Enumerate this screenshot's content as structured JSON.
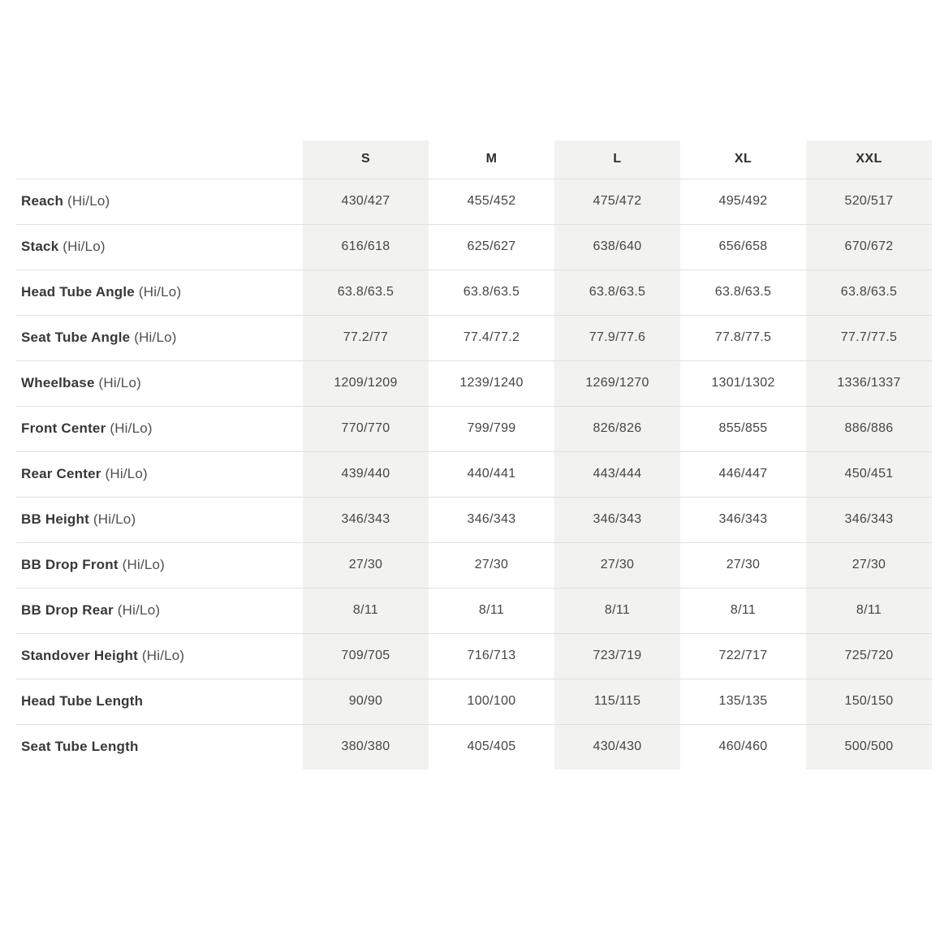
{
  "table": {
    "columns": [
      "S",
      "M",
      "L",
      "XL",
      "XXL"
    ],
    "shaded_column_indexes": [
      0,
      2,
      4
    ],
    "corner_label": "",
    "rows": [
      {
        "label": "Reach",
        "qualifier": "(Hi/Lo)",
        "values": [
          "430/427",
          "455/452",
          "475/472",
          "495/492",
          "520/517"
        ]
      },
      {
        "label": "Stack",
        "qualifier": "(Hi/Lo)",
        "values": [
          "616/618",
          "625/627",
          "638/640",
          "656/658",
          "670/672"
        ]
      },
      {
        "label": "Head Tube Angle",
        "qualifier": "(Hi/Lo)",
        "values": [
          "63.8/63.5",
          "63.8/63.5",
          "63.8/63.5",
          "63.8/63.5",
          "63.8/63.5"
        ]
      },
      {
        "label": "Seat Tube Angle",
        "qualifier": "(Hi/Lo)",
        "values": [
          "77.2/77",
          "77.4/77.2",
          "77.9/77.6",
          "77.8/77.5",
          "77.7/77.5"
        ]
      },
      {
        "label": "Wheelbase",
        "qualifier": "(Hi/Lo)",
        "values": [
          "1209/1209",
          "1239/1240",
          "1269/1270",
          "1301/1302",
          "1336/1337"
        ]
      },
      {
        "label": "Front Center",
        "qualifier": "(Hi/Lo)",
        "values": [
          "770/770",
          "799/799",
          "826/826",
          "855/855",
          "886/886"
        ]
      },
      {
        "label": "Rear Center",
        "qualifier": "(Hi/Lo)",
        "values": [
          "439/440",
          "440/441",
          "443/444",
          "446/447",
          "450/451"
        ]
      },
      {
        "label": "BB Height",
        "qualifier": "(Hi/Lo)",
        "values": [
          "346/343",
          "346/343",
          "346/343",
          "346/343",
          "346/343"
        ]
      },
      {
        "label": "BB Drop Front",
        "qualifier": "(Hi/Lo)",
        "values": [
          "27/30",
          "27/30",
          "27/30",
          "27/30",
          "27/30"
        ]
      },
      {
        "label": "BB Drop Rear",
        "qualifier": "(Hi/Lo)",
        "values": [
          "8/11",
          "8/11",
          "8/11",
          "8/11",
          "8/11"
        ]
      },
      {
        "label": "Standover Height",
        "qualifier": "(Hi/Lo)",
        "values": [
          "709/705",
          "716/713",
          "723/719",
          "722/717",
          "725/720"
        ]
      },
      {
        "label": "Head Tube Length",
        "qualifier": "",
        "values": [
          "90/90",
          "100/100",
          "115/115",
          "135/135",
          "150/150"
        ]
      },
      {
        "label": "Seat Tube Length",
        "qualifier": "",
        "values": [
          "380/380",
          "405/405",
          "430/430",
          "460/460",
          "500/500"
        ]
      }
    ]
  },
  "colors": {
    "shaded_column_bg": "#f2f2f1",
    "row_border": "#e0e0df",
    "header_text": "#2d2d2d",
    "label_text": "#383838",
    "value_text": "#454545",
    "page_bg": "#ffffff"
  },
  "chart_data": {
    "type": "table",
    "title": "",
    "columns": [
      "",
      "S",
      "M",
      "L",
      "XL",
      "XXL"
    ],
    "rows": [
      [
        "Reach (Hi/Lo)",
        "430/427",
        "455/452",
        "475/472",
        "495/492",
        "520/517"
      ],
      [
        "Stack (Hi/Lo)",
        "616/618",
        "625/627",
        "638/640",
        "656/658",
        "670/672"
      ],
      [
        "Head Tube Angle (Hi/Lo)",
        "63.8/63.5",
        "63.8/63.5",
        "63.8/63.5",
        "63.8/63.5",
        "63.8/63.5"
      ],
      [
        "Seat Tube Angle (Hi/Lo)",
        "77.2/77",
        "77.4/77.2",
        "77.9/77.6",
        "77.8/77.5",
        "77.7/77.5"
      ],
      [
        "Wheelbase (Hi/Lo)",
        "1209/1209",
        "1239/1240",
        "1269/1270",
        "1301/1302",
        "1336/1337"
      ],
      [
        "Front Center (Hi/Lo)",
        "770/770",
        "799/799",
        "826/826",
        "855/855",
        "886/886"
      ],
      [
        "Rear Center (Hi/Lo)",
        "439/440",
        "440/441",
        "443/444",
        "446/447",
        "450/451"
      ],
      [
        "BB Height (Hi/Lo)",
        "346/343",
        "346/343",
        "346/343",
        "346/343",
        "346/343"
      ],
      [
        "BB Drop Front (Hi/Lo)",
        "27/30",
        "27/30",
        "27/30",
        "27/30",
        "27/30"
      ],
      [
        "BB Drop Rear (Hi/Lo)",
        "8/11",
        "8/11",
        "8/11",
        "8/11",
        "8/11"
      ],
      [
        "Standover Height (Hi/Lo)",
        "709/705",
        "716/713",
        "723/719",
        "722/717",
        "725/720"
      ],
      [
        "Head Tube Length",
        "90/90",
        "100/100",
        "115/115",
        "135/135",
        "150/150"
      ],
      [
        "Seat Tube Length",
        "380/380",
        "405/405",
        "430/430",
        "460/460",
        "500/500"
      ]
    ]
  }
}
